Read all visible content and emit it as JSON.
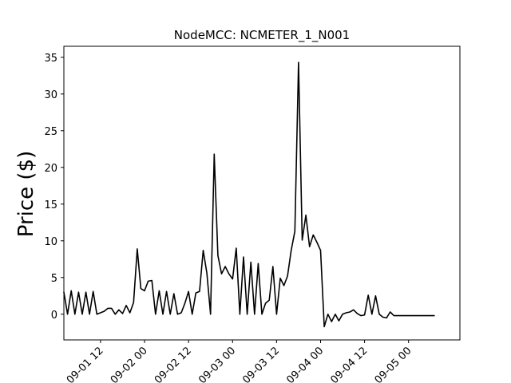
{
  "chart_data": {
    "type": "line",
    "title": "NodeMCC: NCMETER_1_N001",
    "xlabel": "",
    "ylabel": "Price ($)",
    "xlim": [
      "2020-09-01 02:00",
      "2020-09-05 14:00"
    ],
    "ylim": [
      -3.5,
      36.5
    ],
    "grid": false,
    "color": "#000000",
    "y_ticks": [
      0,
      5,
      10,
      15,
      20,
      25,
      30,
      35
    ],
    "y_tick_labels": [
      "0",
      "5",
      "10",
      "15",
      "20",
      "25",
      "30",
      "35"
    ],
    "x_ticks": [
      "2020-09-01 12:00",
      "2020-09-02 00:00",
      "2020-09-02 12:00",
      "2020-09-03 00:00",
      "2020-09-03 12:00",
      "2020-09-04 00:00",
      "2020-09-04 12:00",
      "2020-09-05 00:00"
    ],
    "x_tick_labels": [
      "09-01 12",
      "09-02 00",
      "09-02 12",
      "09-03 00",
      "09-03 12",
      "09-04 00",
      "09-04 12",
      "09-05 00"
    ],
    "series": [
      {
        "x": [
          "2020-09-01 02:00",
          "2020-09-01 03:00",
          "2020-09-01 04:00",
          "2020-09-01 05:00",
          "2020-09-01 06:00",
          "2020-09-01 07:00",
          "2020-09-01 08:00",
          "2020-09-01 09:00",
          "2020-09-01 10:00",
          "2020-09-01 11:00",
          "2020-09-01 12:00",
          "2020-09-01 13:00",
          "2020-09-01 14:00",
          "2020-09-01 15:00",
          "2020-09-01 16:00",
          "2020-09-01 17:00",
          "2020-09-01 18:00",
          "2020-09-01 19:00",
          "2020-09-01 20:00",
          "2020-09-01 21:00",
          "2020-09-01 22:00",
          "2020-09-01 23:00",
          "2020-09-02 00:00",
          "2020-09-02 01:00",
          "2020-09-02 02:00",
          "2020-09-02 03:00",
          "2020-09-02 04:00",
          "2020-09-02 05:00",
          "2020-09-02 06:00",
          "2020-09-02 07:00",
          "2020-09-02 08:00",
          "2020-09-02 09:00",
          "2020-09-02 10:00",
          "2020-09-02 11:00",
          "2020-09-02 12:00",
          "2020-09-02 13:00",
          "2020-09-02 14:00",
          "2020-09-02 15:00",
          "2020-09-02 16:00",
          "2020-09-02 17:00",
          "2020-09-02 18:00",
          "2020-09-02 19:00",
          "2020-09-02 20:00",
          "2020-09-02 21:00",
          "2020-09-02 22:00",
          "2020-09-02 23:00",
          "2020-09-03 00:00",
          "2020-09-03 01:00",
          "2020-09-03 02:00",
          "2020-09-03 03:00",
          "2020-09-03 04:00",
          "2020-09-03 05:00",
          "2020-09-03 06:00",
          "2020-09-03 07:00",
          "2020-09-03 08:00",
          "2020-09-03 09:00",
          "2020-09-03 10:00",
          "2020-09-03 11:00",
          "2020-09-03 12:00",
          "2020-09-03 13:00",
          "2020-09-03 14:00",
          "2020-09-03 15:00",
          "2020-09-03 16:00",
          "2020-09-03 17:00",
          "2020-09-03 18:00",
          "2020-09-03 19:00",
          "2020-09-03 20:00",
          "2020-09-03 21:00",
          "2020-09-03 22:00",
          "2020-09-03 23:00",
          "2020-09-04 00:00",
          "2020-09-04 01:00",
          "2020-09-04 02:00",
          "2020-09-04 03:00",
          "2020-09-04 04:00",
          "2020-09-04 05:00",
          "2020-09-04 06:00",
          "2020-09-04 07:00",
          "2020-09-04 08:00",
          "2020-09-04 09:00",
          "2020-09-04 10:00",
          "2020-09-04 11:00",
          "2020-09-04 12:00",
          "2020-09-04 13:00",
          "2020-09-04 14:00",
          "2020-09-04 15:00",
          "2020-09-04 16:00",
          "2020-09-04 17:00",
          "2020-09-04 18:00",
          "2020-09-04 19:00",
          "2020-09-04 20:00",
          "2020-09-04 21:00",
          "2020-09-04 22:00",
          "2020-09-04 23:00",
          "2020-09-05 00:00",
          "2020-09-05 01:00",
          "2020-09-05 02:00",
          "2020-09-05 03:00",
          "2020-09-05 04:00",
          "2020-09-05 05:00",
          "2020-09-05 06:00",
          "2020-09-05 07:00"
        ],
        "y": [
          3.0,
          0.0,
          3.2,
          0.0,
          3.0,
          0.0,
          3.0,
          0.0,
          3.1,
          0.0,
          0.2,
          0.4,
          0.8,
          0.8,
          0.0,
          0.6,
          0.1,
          1.2,
          0.2,
          1.6,
          8.9,
          3.5,
          3.2,
          4.5,
          4.6,
          0.0,
          3.2,
          0.0,
          3.1,
          0.0,
          2.8,
          0.0,
          0.2,
          1.5,
          3.1,
          0.0,
          2.9,
          3.1,
          8.7,
          5.6,
          0.0,
          21.8,
          8.0,
          5.5,
          6.5,
          5.5,
          4.8,
          9.0,
          0.0,
          7.8,
          0.0,
          7.1,
          0.0,
          6.9,
          0.0,
          1.5,
          1.9,
          6.5,
          0.0,
          4.9,
          3.9,
          5.2,
          8.7,
          11.3,
          34.3,
          10.1,
          13.5,
          9.2,
          10.8,
          9.8,
          8.7,
          -1.7,
          0.0,
          -1.0,
          0.0,
          -0.9,
          0.0,
          0.2,
          0.3,
          0.6,
          0.1,
          -0.2,
          -0.1,
          2.6,
          0.0,
          2.5,
          0.0,
          -0.4,
          -0.5,
          0.3,
          -0.2,
          -0.2,
          -0.2,
          -0.2,
          -0.2,
          -0.2,
          -0.2,
          -0.2,
          -0.2,
          -0.2,
          -0.2,
          -0.2
        ]
      }
    ]
  }
}
